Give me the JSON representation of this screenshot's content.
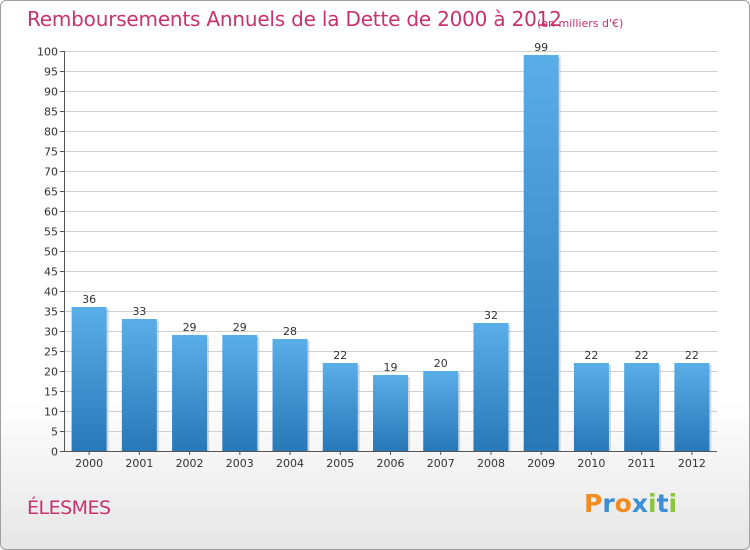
{
  "header": {
    "title": "Remboursements Annuels de la Dette de 2000 à 2012",
    "unit": "(en milliers d'€)"
  },
  "footer": {
    "commune": "ÉLESMES",
    "brand": "Proxiti",
    "brand_colors": [
      "#f28c1e",
      "#3a8fd6",
      "#f28c1e",
      "#3a8fd6",
      "#8cc63f",
      "#3a8fd6",
      "#8cc63f"
    ]
  },
  "colors": {
    "accent": "#c8326e",
    "bar_top": "#5aaee8",
    "bar_bottom": "#2878b8",
    "grid": "#d0d0d0"
  },
  "chart_data": {
    "type": "bar",
    "title": "Remboursements Annuels de la Dette de 2000 à 2012",
    "subtitle": "(en milliers d'€)",
    "categories": [
      "2000",
      "2001",
      "2002",
      "2003",
      "2004",
      "2005",
      "2006",
      "2007",
      "2008",
      "2009",
      "2010",
      "2011",
      "2012"
    ],
    "values": [
      36,
      33,
      29,
      29,
      28,
      22,
      19,
      20,
      32,
      99,
      22,
      22,
      22
    ],
    "ylim": [
      0,
      100
    ],
    "yticks": [
      0,
      5,
      10,
      15,
      20,
      25,
      30,
      35,
      40,
      45,
      50,
      55,
      60,
      65,
      70,
      75,
      80,
      85,
      90,
      95,
      100
    ],
    "grid": true,
    "data_labels": true,
    "xlabel": "",
    "ylabel": ""
  }
}
